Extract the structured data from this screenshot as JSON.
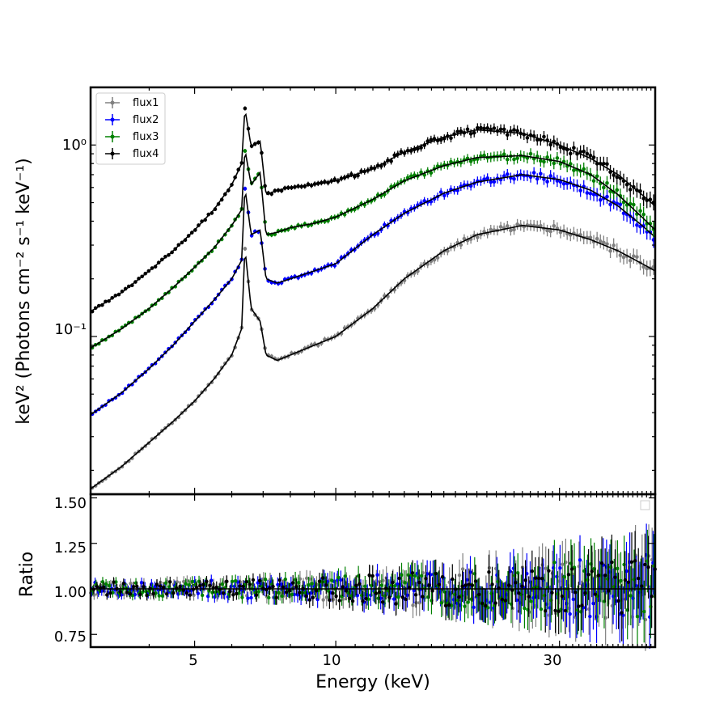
{
  "chart_data": [
    {
      "type": "scatter",
      "panel": "spectrum",
      "xscale": "log",
      "yscale": "log",
      "xlim": [
        3.0,
        48.0
      ],
      "ylim": [
        0.015,
        2.0
      ],
      "xlabel": "Energy (keV)",
      "ylabel": "keV² (Photons cm⁻² s⁻¹ keV⁻¹)",
      "ytick_labels": [
        {
          "value": 1.0,
          "label": "10⁰"
        },
        {
          "value": 0.1,
          "label": "10⁻¹"
        }
      ],
      "legend": {
        "position": "top-left",
        "entries": [
          "flux1",
          "flux2",
          "flux3",
          "flux4"
        ]
      },
      "series": [
        {
          "name": "flux1",
          "color": "#808080",
          "x": [
            3.0,
            3.5,
            4.0,
            4.5,
            5.0,
            5.5,
            6.0,
            6.3,
            6.4,
            6.6,
            6.9,
            7.1,
            7.5,
            8.0,
            9.0,
            10.0,
            12.0,
            14.0,
            17.0,
            20.0,
            25.0,
            30.0,
            35.0,
            40.0,
            45.0,
            48.0
          ],
          "y": [
            0.016,
            0.021,
            0.028,
            0.036,
            0.046,
            0.06,
            0.08,
            0.11,
            0.29,
            0.14,
            0.12,
            0.08,
            0.075,
            0.08,
            0.09,
            0.1,
            0.14,
            0.2,
            0.28,
            0.34,
            0.38,
            0.36,
            0.32,
            0.28,
            0.24,
            0.22
          ]
        },
        {
          "name": "flux2",
          "color": "#0000ff",
          "x": [
            3.0,
            3.5,
            4.0,
            4.5,
            5.0,
            5.5,
            6.0,
            6.3,
            6.4,
            6.6,
            6.9,
            7.1,
            7.5,
            8.0,
            9.0,
            10.0,
            12.0,
            14.0,
            17.0,
            20.0,
            25.0,
            30.0,
            35.0,
            40.0,
            45.0,
            48.0
          ],
          "y": [
            0.039,
            0.051,
            0.068,
            0.09,
            0.12,
            0.155,
            0.2,
            0.25,
            0.6,
            0.34,
            0.36,
            0.2,
            0.19,
            0.2,
            0.22,
            0.24,
            0.34,
            0.44,
            0.56,
            0.64,
            0.7,
            0.66,
            0.58,
            0.48,
            0.38,
            0.33
          ]
        },
        {
          "name": "flux3",
          "color": "#008000",
          "x": [
            3.0,
            3.5,
            4.0,
            4.5,
            5.0,
            5.5,
            6.0,
            6.3,
            6.4,
            6.6,
            6.9,
            7.1,
            7.5,
            8.0,
            9.0,
            10.0,
            12.0,
            14.0,
            17.0,
            20.0,
            25.0,
            30.0,
            35.0,
            40.0,
            45.0,
            48.0
          ],
          "y": [
            0.087,
            0.11,
            0.14,
            0.18,
            0.23,
            0.29,
            0.38,
            0.46,
            0.95,
            0.62,
            0.72,
            0.34,
            0.35,
            0.37,
            0.39,
            0.42,
            0.52,
            0.65,
            0.78,
            0.86,
            0.88,
            0.82,
            0.7,
            0.55,
            0.42,
            0.36
          ]
        },
        {
          "name": "flux4",
          "color": "#000000",
          "x": [
            3.0,
            3.5,
            4.0,
            4.5,
            5.0,
            5.5,
            6.0,
            6.3,
            6.4,
            6.6,
            6.9,
            7.1,
            7.5,
            8.0,
            9.0,
            10.0,
            12.0,
            14.0,
            17.0,
            20.0,
            25.0,
            30.0,
            35.0,
            40.0,
            45.0,
            48.0
          ],
          "y": [
            0.135,
            0.17,
            0.22,
            0.28,
            0.36,
            0.46,
            0.62,
            0.8,
            1.55,
            0.98,
            1.05,
            0.55,
            0.58,
            0.6,
            0.62,
            0.65,
            0.75,
            0.92,
            1.1,
            1.2,
            1.15,
            1.0,
            0.85,
            0.7,
            0.55,
            0.48
          ]
        }
      ]
    },
    {
      "type": "scatter",
      "panel": "ratio",
      "xscale": "log",
      "xlim": [
        3.0,
        48.0
      ],
      "ylim": [
        0.68,
        1.52
      ],
      "xlabel": "Energy (keV)",
      "ylabel": "Ratio",
      "reference_line": 1.0,
      "yticks": [
        "0.75",
        "1.00",
        "1.25",
        "1.50"
      ],
      "xticks": [
        "5",
        "10",
        "30"
      ],
      "series_names": [
        "flux1",
        "flux2",
        "flux3",
        "flux4"
      ]
    }
  ],
  "legend": {
    "entries": [
      "flux1",
      "flux2",
      "flux3",
      "flux4"
    ]
  },
  "axes": {
    "xlabel": "Energy (keV)",
    "top_ylabel": "keV² (Photons cm⁻² s⁻¹ keV⁻¹)",
    "bottom_ylabel": "Ratio",
    "x_ticks": [
      "5",
      "10",
      "30"
    ],
    "top_y_ticks": [
      "10⁰",
      "10⁻¹"
    ],
    "bottom_y_ticks": [
      "0.75",
      "1.00",
      "1.25",
      "1.50"
    ]
  }
}
